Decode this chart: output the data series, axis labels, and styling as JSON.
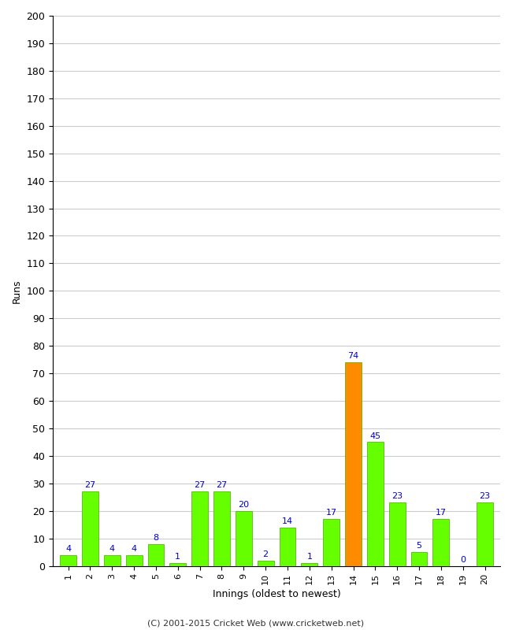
{
  "innings": [
    1,
    2,
    3,
    4,
    5,
    6,
    7,
    8,
    9,
    10,
    11,
    12,
    13,
    14,
    15,
    16,
    17,
    18,
    19,
    20
  ],
  "runs": [
    4,
    27,
    4,
    4,
    8,
    1,
    27,
    27,
    20,
    2,
    14,
    1,
    17,
    74,
    45,
    23,
    5,
    17,
    0,
    23
  ],
  "colors": [
    "#66ff00",
    "#66ff00",
    "#66ff00",
    "#66ff00",
    "#66ff00",
    "#66ff00",
    "#66ff00",
    "#66ff00",
    "#66ff00",
    "#66ff00",
    "#66ff00",
    "#66ff00",
    "#66ff00",
    "#ff8c00",
    "#66ff00",
    "#66ff00",
    "#66ff00",
    "#66ff00",
    "#66ff00",
    "#66ff00"
  ],
  "xlabel": "Innings (oldest to newest)",
  "ylabel": "Runs",
  "ylim": [
    0,
    200
  ],
  "yticks": [
    0,
    10,
    20,
    30,
    40,
    50,
    60,
    70,
    80,
    90,
    100,
    110,
    120,
    130,
    140,
    150,
    160,
    170,
    180,
    190,
    200
  ],
  "label_color": "#0000cc",
  "grid_color": "#cccccc",
  "background_color": "#ffffff",
  "footer": "(C) 2001-2015 Cricket Web (www.cricketweb.net)",
  "bar_edge_color": "#44aa00",
  "bar_width": 0.75
}
